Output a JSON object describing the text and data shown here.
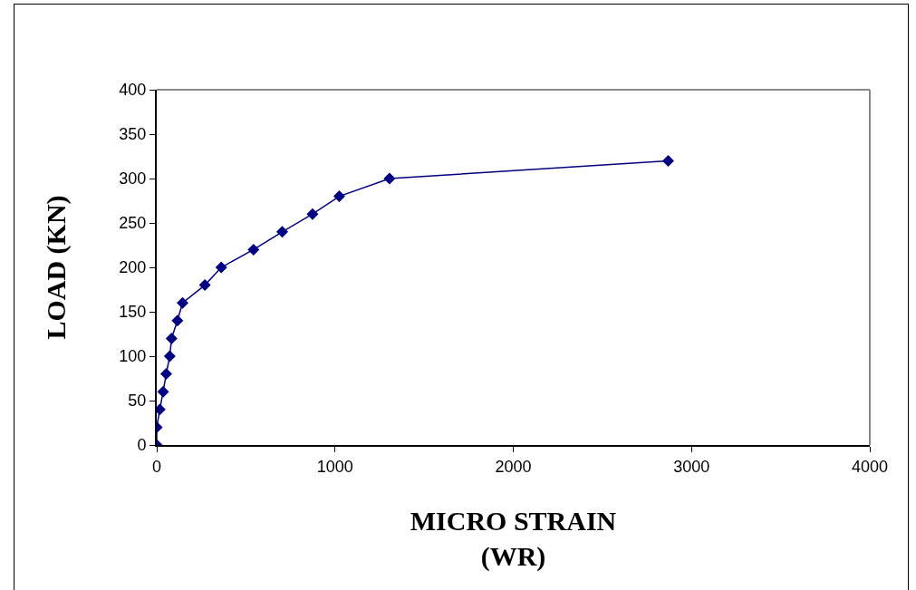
{
  "chart_data": {
    "type": "line",
    "xlabel": "MICRO STRAIN\n(WR)",
    "ylabel": "LOAD (KN)",
    "x": [
      0,
      0,
      17,
      36,
      53,
      73,
      83,
      116,
      145,
      270,
      362,
      543,
      704,
      874,
      1024,
      1306,
      2869
    ],
    "series": [
      {
        "color": "#000080",
        "values": [
          0,
          20,
          40,
          60,
          80,
          100,
          120,
          140,
          160,
          180,
          200,
          220,
          240,
          260,
          280,
          300,
          320
        ]
      }
    ],
    "xlim": [
      0,
      4000
    ],
    "xticks": [
      0,
      1000,
      2000,
      3000,
      4000
    ],
    "ylim": [
      0,
      400
    ],
    "yticks": [
      0,
      50,
      100,
      150,
      200,
      250,
      300,
      350,
      400
    ],
    "grid": false,
    "marker": "diamond",
    "line_style": "solid"
  }
}
